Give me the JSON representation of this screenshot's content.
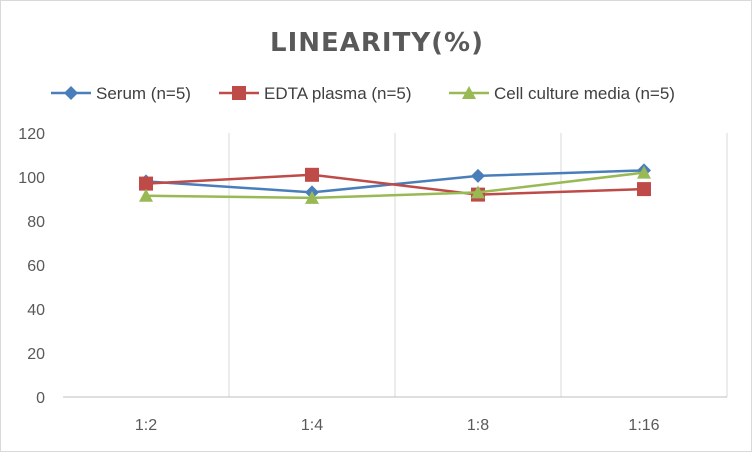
{
  "chart_data": {
    "type": "line",
    "title": "LINEARITY(%)",
    "categories": [
      "1:2",
      "1:4",
      "1:8",
      "1:16"
    ],
    "ylim": [
      0,
      120
    ],
    "yticks": [
      0,
      20,
      40,
      60,
      80,
      100,
      120
    ],
    "grid": "vertical",
    "legend_position": "top",
    "series": [
      {
        "name": "Serum (n=5)",
        "color": "#4a7ebb",
        "marker": "diamond",
        "values": [
          98,
          93,
          100.5,
          103
        ]
      },
      {
        "name": "EDTA plasma (n=5)",
        "color": "#be4b48",
        "marker": "square",
        "values": [
          97,
          101,
          92,
          94.5
        ]
      },
      {
        "name": "Cell culture media (n=5)",
        "color": "#98b954",
        "marker": "triangle",
        "values": [
          91.5,
          90.5,
          93,
          102
        ]
      }
    ]
  }
}
